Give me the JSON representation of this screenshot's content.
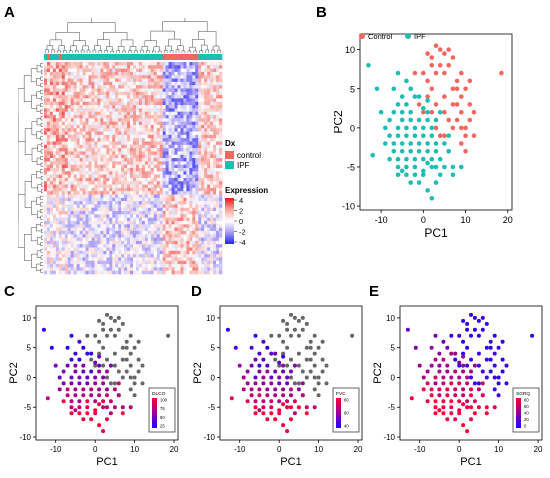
{
  "panel_letters": [
    "A",
    "B",
    "C",
    "D",
    "E"
  ],
  "heatmap": {
    "annotation_colors": {
      "control": "#F0685F",
      "IPF": "#1DBDB3"
    },
    "legend_dx": {
      "title": "Dx",
      "items": [
        "control",
        "IPF"
      ]
    },
    "legend_expression": {
      "title": "Expression",
      "ticks": [
        "4",
        "2",
        "0",
        "-2",
        "-4"
      ],
      "colors": [
        "#E8161A",
        "#F6A59E",
        "#FFFFFF",
        "#A79BF6",
        "#2222EE"
      ]
    },
    "n_genes": 64,
    "n_samples": 60,
    "n_control_samples": 12
  },
  "colors": {
    "control": "#F0685F",
    "ipf": "#1DBDB3",
    "unscored": "#666666",
    "gradient_high": "#FF0033",
    "gradient_low": "#2200FF"
  },
  "chart_data": [
    {
      "panel": "B",
      "type": "scatter",
      "xlabel": "PC1",
      "ylabel": "PC2",
      "xlim": [
        -15,
        21
      ],
      "ylim": [
        -10.5,
        12
      ],
      "xticks": [
        -10,
        0,
        10,
        20
      ],
      "yticks": [
        -10,
        -5,
        0,
        5,
        10
      ],
      "legend_placement": "top",
      "series": [
        {
          "name": "Control",
          "color": "#F0685F",
          "points": [
            [
              0,
              7
            ],
            [
              1,
              9.5
            ],
            [
              2,
              9
            ],
            [
              3,
              10.5
            ],
            [
              4,
              10
            ],
            [
              5,
              9.5
            ],
            [
              4,
              8
            ],
            [
              6,
              8
            ],
            [
              3,
              7
            ],
            [
              5,
              7
            ],
            [
              -2,
              7
            ],
            [
              7,
              5
            ],
            [
              8,
              6
            ],
            [
              9,
              4
            ],
            [
              10,
              5
            ],
            [
              11,
              3
            ],
            [
              9,
              2
            ],
            [
              8,
              3
            ],
            [
              6,
              1
            ],
            [
              5,
              2
            ],
            [
              7,
              0
            ],
            [
              8,
              1
            ],
            [
              10,
              0
            ],
            [
              11,
              1
            ],
            [
              12,
              -1
            ],
            [
              9,
              -2
            ],
            [
              6,
              -3
            ],
            [
              10,
              -3
            ],
            [
              4,
              -1
            ],
            [
              3,
              0
            ],
            [
              2,
              5
            ],
            [
              0,
              2
            ],
            [
              -1,
              3
            ],
            [
              1,
              4
            ],
            [
              7,
              3
            ],
            [
              8,
              5
            ],
            [
              5,
              4
            ],
            [
              3,
              3
            ],
            [
              11,
              6
            ],
            [
              9,
              7
            ],
            [
              10,
              -1
            ],
            [
              12,
              2
            ],
            [
              2,
              8
            ],
            [
              1,
              6
            ],
            [
              6,
              10
            ],
            [
              7,
              9
            ],
            [
              18.5,
              7
            ],
            [
              2,
              2
            ],
            [
              5,
              -1
            ],
            [
              9,
              0
            ]
          ]
        },
        {
          "name": "IPF",
          "color": "#1DBDB3",
          "points": [
            [
              -13,
              8
            ],
            [
              -11,
              5
            ],
            [
              -6,
              7
            ],
            [
              -7,
              5
            ],
            [
              -5,
              4
            ],
            [
              -4,
              6
            ],
            [
              -2,
              4
            ],
            [
              -7,
              2
            ],
            [
              -6,
              3
            ],
            [
              -5,
              2
            ],
            [
              -4,
              3
            ],
            [
              -3,
              2
            ],
            [
              -8,
              1
            ],
            [
              -6,
              0
            ],
            [
              -5,
              1
            ],
            [
              -4,
              0
            ],
            [
              -3,
              1
            ],
            [
              -2,
              0
            ],
            [
              -1,
              1
            ],
            [
              0,
              0
            ],
            [
              1,
              1
            ],
            [
              2,
              0
            ],
            [
              -8,
              -1
            ],
            [
              -7,
              -2
            ],
            [
              -6,
              -1
            ],
            [
              -5,
              -2
            ],
            [
              -4,
              -1
            ],
            [
              -3,
              -2
            ],
            [
              -2,
              -1
            ],
            [
              -1,
              -2
            ],
            [
              0,
              -1
            ],
            [
              1,
              -2
            ],
            [
              2,
              -1
            ],
            [
              3,
              -2
            ],
            [
              -7,
              -3
            ],
            [
              -6,
              -4
            ],
            [
              -5,
              -3
            ],
            [
              -4,
              -4
            ],
            [
              -3,
              -3
            ],
            [
              -2,
              -4
            ],
            [
              -1,
              -3
            ],
            [
              0,
              -4
            ],
            [
              1,
              -3
            ],
            [
              2,
              -4
            ],
            [
              3,
              -3
            ],
            [
              4,
              -4
            ],
            [
              -6,
              -5
            ],
            [
              -4,
              -6
            ],
            [
              -2,
              -5
            ],
            [
              0,
              -6
            ],
            [
              2,
              -5
            ],
            [
              4,
              -6
            ],
            [
              -3,
              -7
            ],
            [
              -1,
              -7
            ],
            [
              1,
              -8
            ],
            [
              3,
              -7
            ],
            [
              5,
              -5
            ],
            [
              6,
              -3
            ],
            [
              7,
              -5
            ],
            [
              2,
              -9
            ],
            [
              7,
              -6
            ],
            [
              9,
              -5
            ],
            [
              -12,
              -3.5
            ],
            [
              -9,
              -2
            ],
            [
              -8,
              -4
            ],
            [
              -9,
              0
            ],
            [
              -10,
              2
            ],
            [
              -3,
              5
            ],
            [
              -1,
              4
            ],
            [
              0,
              2.5
            ],
            [
              1,
              2
            ],
            [
              3,
              1
            ],
            [
              4,
              2
            ],
            [
              5,
              -2
            ],
            [
              6,
              -1
            ],
            [
              3,
              -5
            ],
            [
              0,
              -5.5
            ],
            [
              -2,
              -6
            ],
            [
              1,
              -4.5
            ],
            [
              -4,
              -5
            ],
            [
              -6,
              -6
            ],
            [
              -5,
              -5.5
            ],
            [
              1,
              3.5
            ]
          ]
        }
      ]
    },
    {
      "panel": "C",
      "type": "scatter",
      "xlabel": "PC1",
      "ylabel": "PC2",
      "xlim": [
        -15,
        21
      ],
      "ylim": [
        -10.5,
        12
      ],
      "xticks": [
        -10,
        0,
        10,
        20
      ],
      "yticks": [
        -10,
        -5,
        0,
        5,
        10
      ],
      "legend": {
        "title": "DLCO",
        "ticks": [
          "100",
          "75",
          "50",
          "25"
        ],
        "placement": "bottom-right"
      },
      "color_metric": "DLCO",
      "range": [
        20,
        110
      ]
    },
    {
      "panel": "D",
      "type": "scatter",
      "xlabel": "PC1",
      "ylabel": "PC2",
      "xlim": [
        -15,
        21
      ],
      "ylim": [
        -10.5,
        12
      ],
      "xticks": [
        -10,
        0,
        10,
        20
      ],
      "yticks": [
        -10,
        -5,
        0,
        5,
        10
      ],
      "legend": {
        "title": "FVC",
        "ticks": [
          "80",
          "60",
          "40"
        ],
        "placement": "bottom-right"
      },
      "color_metric": "FVC",
      "range": [
        35,
        90
      ]
    },
    {
      "panel": "E",
      "type": "scatter",
      "xlabel": "PC1",
      "ylabel": "PC2",
      "xlim": [
        -15,
        21
      ],
      "ylim": [
        -10.5,
        12
      ],
      "xticks": [
        -10,
        0,
        10,
        20
      ],
      "yticks": [
        -10,
        -5,
        0,
        5,
        10
      ],
      "legend": {
        "title": "SGRQ",
        "ticks": [
          "80",
          "60",
          "40",
          "20",
          "0"
        ],
        "placement": "bottom-right"
      },
      "color_metric": "SGRQ",
      "range": [
        0,
        90
      ]
    }
  ]
}
